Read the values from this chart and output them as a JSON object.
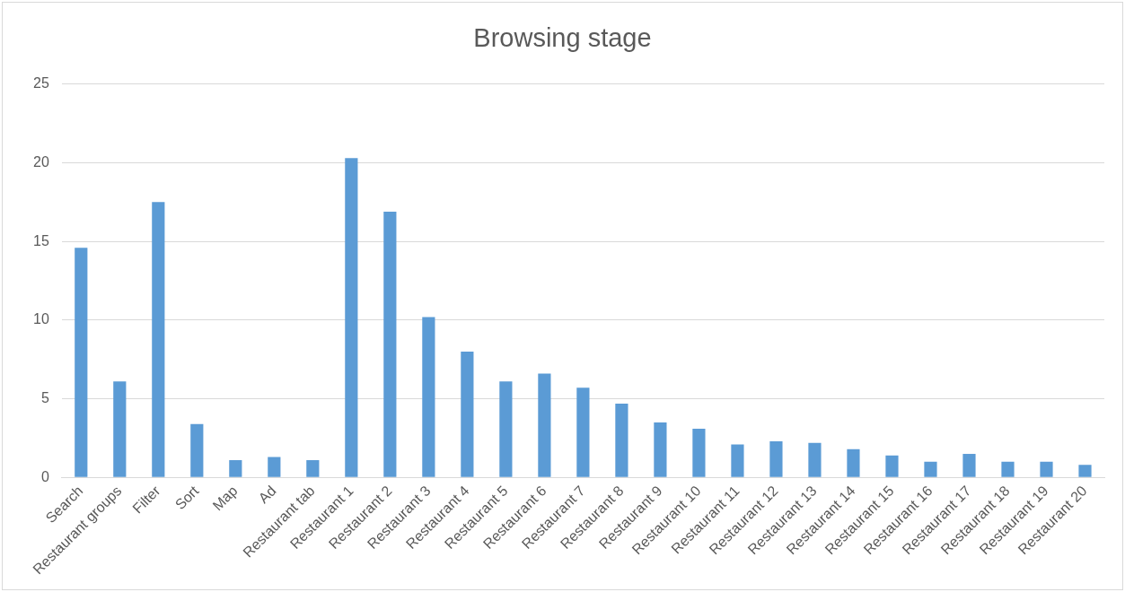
{
  "chart_data": {
    "type": "bar",
    "title": "Browsing stage",
    "categories": [
      "Search",
      "Restaurant groups",
      "Filter",
      "Sort",
      "Map",
      "Ad",
      "Restaurant tab",
      "Restaurant 1",
      "Restaurant 2",
      "Restaurant 3",
      "Restaurant 4",
      "Restaurant 5",
      "Restaurant 6",
      "Restaurant 7",
      "Restaurant 8",
      "Restaurant 9",
      "Restaurant 10",
      "Restaurant 11",
      "Restaurant 12",
      "Restaurant 13",
      "Restaurant 14",
      "Restaurant 15",
      "Restaurant 16",
      "Restaurant 17",
      "Restaurant 18",
      "Restaurant 19",
      "Restaurant 20"
    ],
    "values": [
      14.6,
      6.1,
      17.5,
      3.4,
      1.1,
      1.3,
      1.1,
      20.3,
      16.9,
      10.2,
      8.0,
      6.1,
      6.6,
      5.7,
      4.7,
      3.5,
      3.1,
      2.1,
      2.3,
      2.2,
      1.8,
      1.4,
      1.0,
      1.5,
      1.0,
      1.0,
      0.8
    ],
    "color": "#5b9bd5",
    "ylim": [
      0,
      25
    ],
    "yticks": [
      0,
      5,
      10,
      15,
      20,
      25
    ],
    "grid": "y",
    "legend": false
  }
}
